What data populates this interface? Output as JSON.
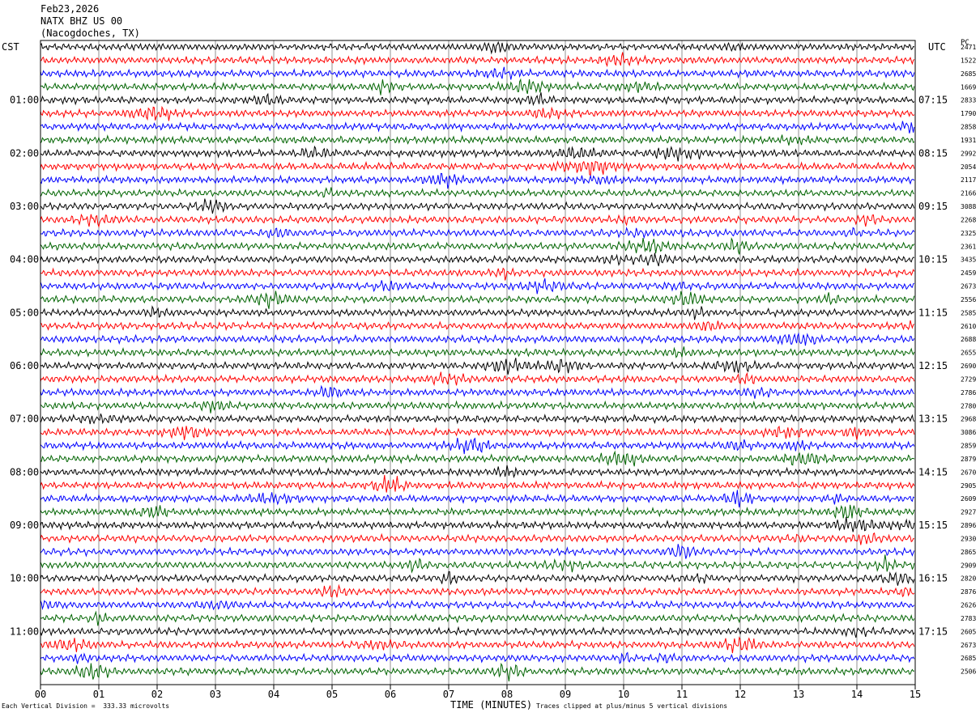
{
  "header": {
    "date": "Feb23,2026",
    "station": "NATX BHZ US 00",
    "location": "(Nacogdoches, TX)"
  },
  "labels": {
    "left_timezone": "CST",
    "right_timezone": "UTC",
    "right_column_code": "PC"
  },
  "footer": {
    "scale_note": "Each Vertical Division =  333.33 microvolts",
    "clip_note": "Traces clipped at plus/minus 5 vertical divisions"
  },
  "chart_data": {
    "type": "line",
    "title": "",
    "xlabel": "TIME (MINUTES)",
    "ylabel": "",
    "xlim": [
      0,
      15
    ],
    "x_ticks": [
      "00",
      "01",
      "02",
      "03",
      "04",
      "05",
      "06",
      "07",
      "08",
      "09",
      "10",
      "11",
      "12",
      "13",
      "14",
      "15"
    ],
    "grid": true,
    "trace_colors": [
      "#000000",
      "#ff0000",
      "#0000ff",
      "#006400"
    ],
    "num_traces": 48,
    "left_hour_labels": [
      "01:00",
      "02:00",
      "03:00",
      "04:00",
      "05:00",
      "06:00",
      "07:00",
      "08:00",
      "09:00",
      "10:00",
      "11:00"
    ],
    "right_hour_labels": [
      "07:15",
      "08:15",
      "09:15",
      "10:15",
      "11:15",
      "12:15",
      "13:15",
      "14:15",
      "15:15",
      "16:15",
      "17:15"
    ],
    "trace_counts": [
      "2471",
      "1522",
      "2685",
      "1669",
      "2833",
      "1790",
      "2858",
      "1931",
      "2992",
      "2054",
      "2117",
      "2166",
      "3088",
      "2268",
      "2325",
      "2361",
      "3435",
      "2459",
      "2673",
      "2556",
      "2585",
      "2610",
      "2688",
      "2655",
      "2690",
      "2729",
      "2786",
      "2780",
      "2968",
      "3086",
      "2859",
      "2879",
      "2670",
      "2905",
      "2609",
      "2927",
      "2896",
      "2930",
      "2865",
      "2909",
      "2820",
      "2876",
      "2626",
      "2783",
      "2605",
      "2673",
      "2685",
      "2506"
    ]
  }
}
